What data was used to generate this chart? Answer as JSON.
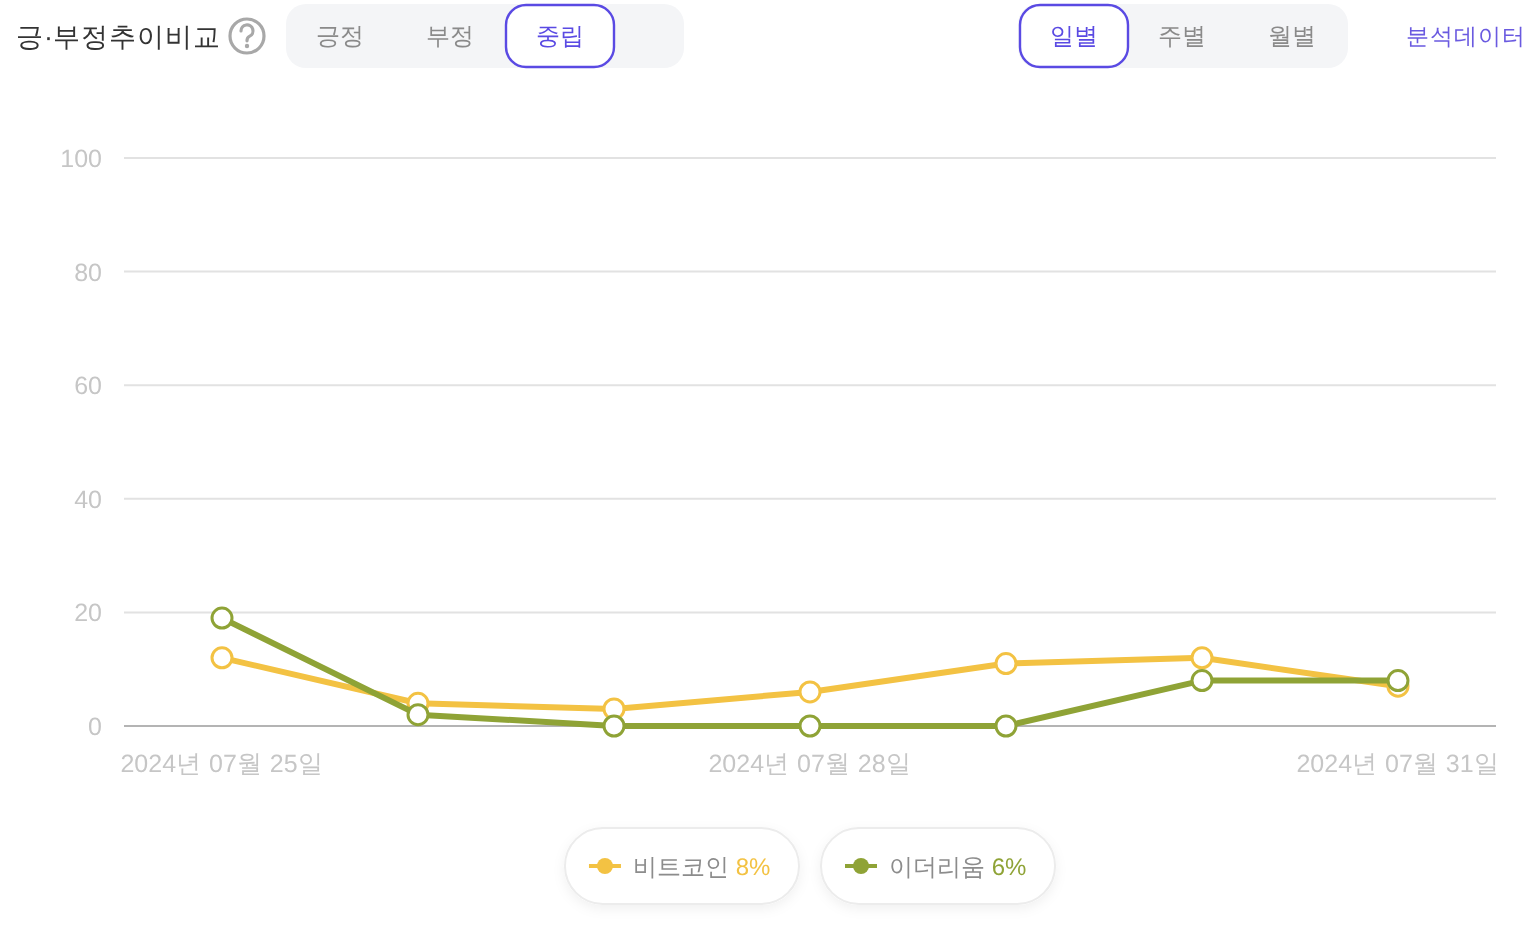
{
  "chart_data": {
    "type": "line",
    "title": "긍·부정추이비교",
    "categories": [
      "2024년 07월 25일",
      null,
      null,
      "2024년 07월 28일",
      null,
      null,
      "2024년 07월 31일"
    ],
    "series": [
      {
        "name": "비트코인 8%",
        "color": "#f3c243",
        "values": [
          12,
          4,
          3,
          6,
          11,
          12,
          7
        ]
      },
      {
        "name": "이더리움 6%",
        "color": "#8fa336",
        "values": [
          19,
          2,
          0,
          0,
          0,
          8,
          8
        ]
      }
    ],
    "ylim": [
      0,
      100
    ],
    "yticks": [
      0,
      20,
      40,
      60,
      80,
      100
    ],
    "grid": "y",
    "legend": "bottom",
    "marker": "circle",
    "line_style": "solid",
    "annotations": [
      "긍정",
      "부정",
      "중립",
      "일별",
      "주별",
      "월별",
      "분석데이터"
    ]
  }
}
